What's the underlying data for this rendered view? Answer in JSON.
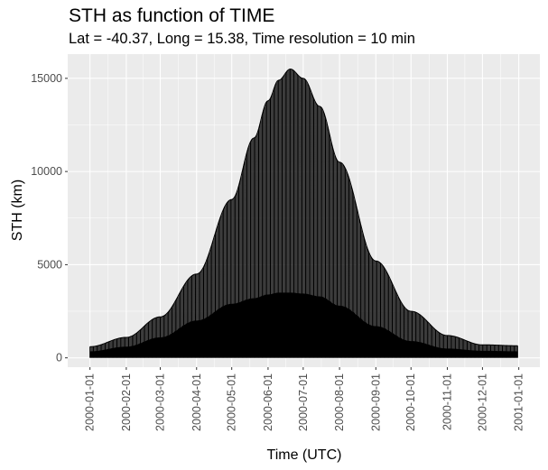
{
  "chart_data": {
    "type": "area",
    "title": "STH as function of TIME",
    "subtitle": "Lat = -40.37, Long = 15.38, Time resolution = 10 min",
    "xlabel": "Time (UTC)",
    "ylabel": "STH (km)",
    "x_tick_labels": [
      "2000-01-01",
      "2000-02-01",
      "2000-03-01",
      "2000-04-01",
      "2000-05-01",
      "2000-06-01",
      "2000-07-01",
      "2000-08-01",
      "2000-09-01",
      "2000-10-01",
      "2000-11-01",
      "2000-12-01",
      "2001-01-01"
    ],
    "y_tick_labels": [
      "0",
      "5000",
      "10000",
      "15000"
    ],
    "y_ticks": [
      0,
      5000,
      10000,
      15000
    ],
    "ylim": [
      -500,
      16300
    ],
    "xlim": [
      "1999-12-13",
      "2001-01-19"
    ],
    "grid": true,
    "background": "#ebebeb",
    "line_color": "#000000",
    "series": [
      {
        "x": [
          "2000-01-01",
          "2000-02-01",
          "2000-03-01",
          "2000-04-01",
          "2000-05-01",
          "2000-05-20",
          "2000-06-01",
          "2000-06-10",
          "2000-06-20",
          "2000-07-01",
          "2000-07-15",
          "2000-08-01",
          "2000-09-01",
          "2000-10-01",
          "2000-11-01",
          "2000-12-01",
          "2000-12-31"
        ],
        "upper": [
          600,
          1100,
          2200,
          4500,
          8500,
          11800,
          13800,
          14900,
          15500,
          15000,
          13500,
          10500,
          5200,
          2500,
          1200,
          700,
          650
        ],
        "lower": [
          0,
          0,
          0,
          0,
          0,
          0,
          0,
          0,
          0,
          0,
          0,
          0,
          0,
          0,
          0,
          0,
          0
        ],
        "dense_band": [
          350,
          600,
          1100,
          2000,
          2900,
          3200,
          3400,
          3500,
          3500,
          3450,
          3300,
          2800,
          1700,
          900,
          500,
          380,
          350
        ]
      }
    ]
  }
}
